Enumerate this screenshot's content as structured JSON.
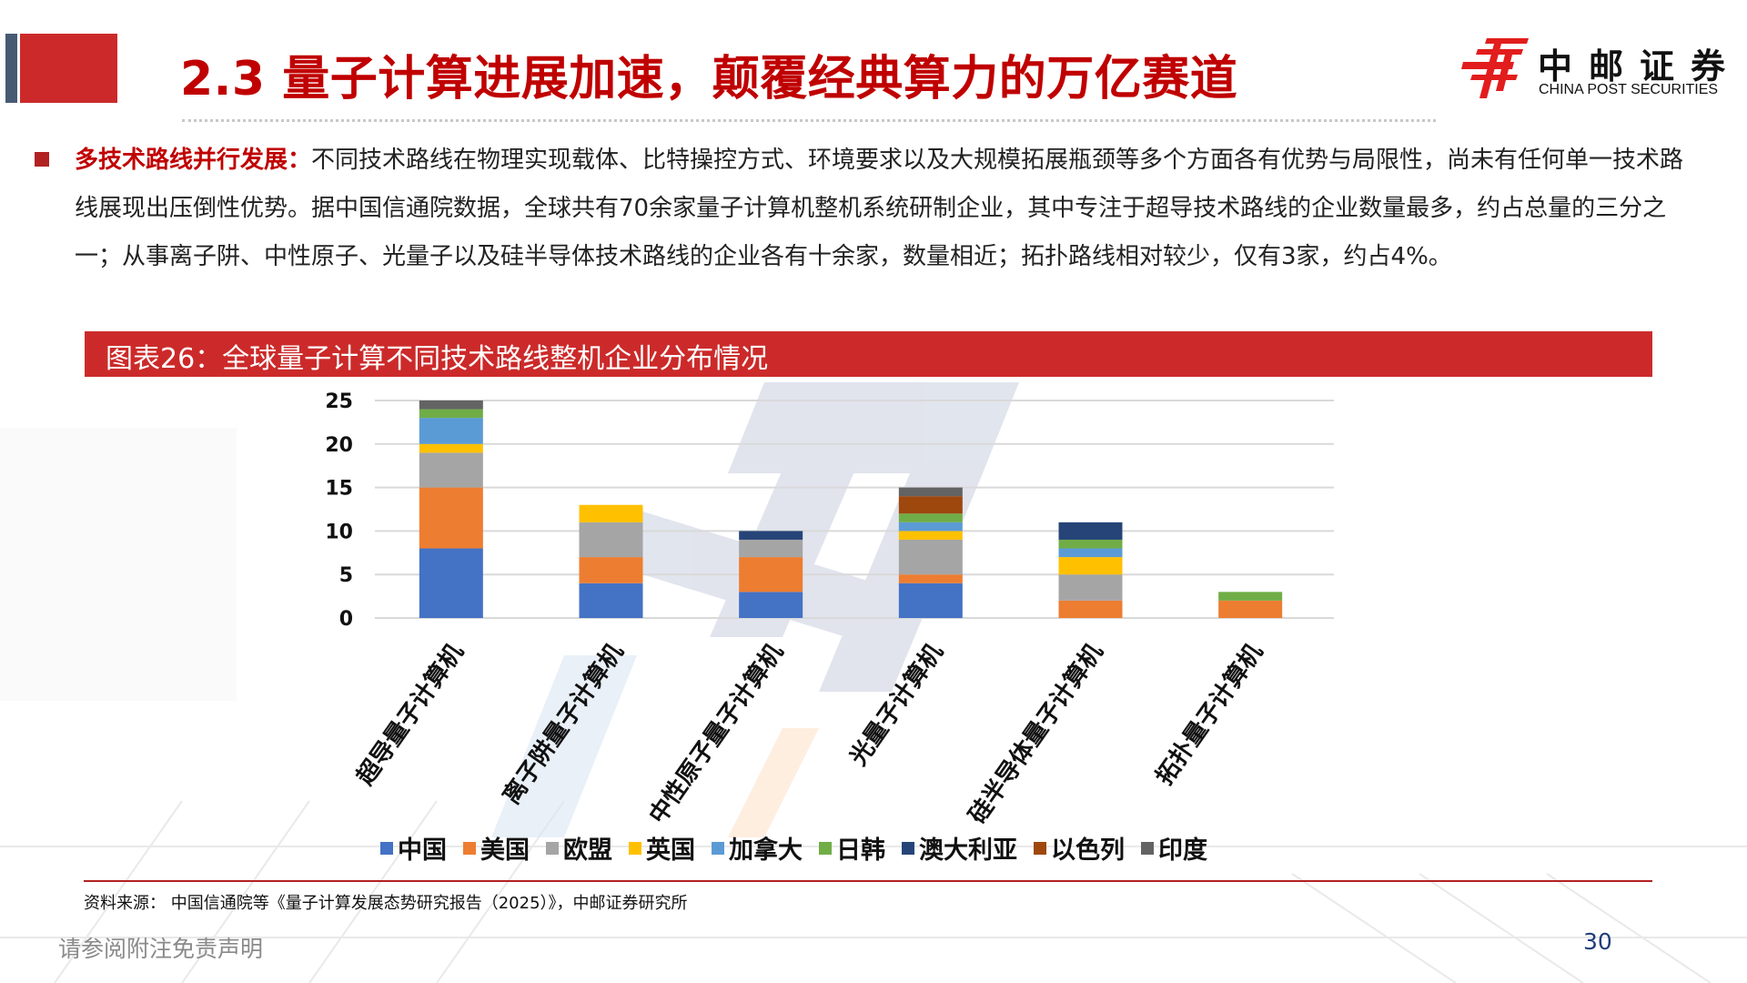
{
  "header": {
    "title": "2.3 量子计算进展加速，颠覆经典算力的万亿赛道",
    "logo": {
      "name_cn": "中邮证券",
      "name_en": "CHINA POST SECURITIES",
      "icon": "china-post-logo-icon"
    }
  },
  "body": {
    "bullet_lead": "多技术路线并行发展：",
    "bullet_text": "不同技术路线在物理实现载体、比特操控方式、环境要求以及大规模拓展瓶颈等多个方面各有优势与局限性，尚未有任何单一技术路线展现出压倒性优势。据中国信通院数据，全球共有70余家量子计算机整机系统研制企业，其中专注于超导技术路线的企业数量最多，约占总量的三分之一；从事离子阱、中性原子、光量子以及硅半导体技术路线的企业各有十余家，数量相近；拓扑路线相对较少，仅有3家，约占4%。"
  },
  "figure": {
    "title": "图表26：全球量子计算不同技术路线整机企业分布情况"
  },
  "chart_data": {
    "type": "bar",
    "stacked": true,
    "title": "全球量子计算不同技术路线整机企业分布情况",
    "xlabel": "",
    "ylabel": "",
    "ylim": [
      0,
      25
    ],
    "yticks": [
      0,
      5,
      10,
      15,
      20,
      25
    ],
    "grid": true,
    "legend_position": "bottom",
    "categories": [
      "超导量子计算机",
      "离子阱量子计算机",
      "中性原子量子计算机",
      "光量子计算机",
      "硅半导体量子计算机",
      "拓扑量子计算机"
    ],
    "series": [
      {
        "name": "中国",
        "color": "#4472c4",
        "values": [
          8,
          4,
          3,
          4,
          0,
          0
        ]
      },
      {
        "name": "美国",
        "color": "#ed7d31",
        "values": [
          7,
          3,
          4,
          1,
          2,
          2
        ]
      },
      {
        "name": "欧盟",
        "color": "#a5a5a5",
        "values": [
          4,
          4,
          2,
          4,
          3,
          0
        ]
      },
      {
        "name": "英国",
        "color": "#ffc000",
        "values": [
          1,
          2,
          0,
          1,
          2,
          0
        ]
      },
      {
        "name": "加拿大",
        "color": "#5b9bd5",
        "values": [
          3,
          0,
          0,
          1,
          1,
          0
        ]
      },
      {
        "name": "日韩",
        "color": "#70ad47",
        "values": [
          1,
          0,
          0,
          1,
          1,
          1
        ]
      },
      {
        "name": "澳大利亚",
        "color": "#264478",
        "values": [
          0,
          0,
          1,
          0,
          2,
          0
        ]
      },
      {
        "name": "以色列",
        "color": "#9e480e",
        "values": [
          0,
          0,
          0,
          2,
          0,
          0
        ]
      },
      {
        "name": "印度",
        "color": "#636363",
        "values": [
          1,
          0,
          0,
          1,
          0,
          0
        ]
      }
    ],
    "totals": [
      25,
      13,
      10,
      15,
      11,
      3
    ]
  },
  "footer": {
    "source": "资料来源：  中国信通院等《量子计算发展态势研究报告（2025）》，中邮证券研究所",
    "disclaimer": "请参阅附注免责声明",
    "page_number": "30"
  }
}
